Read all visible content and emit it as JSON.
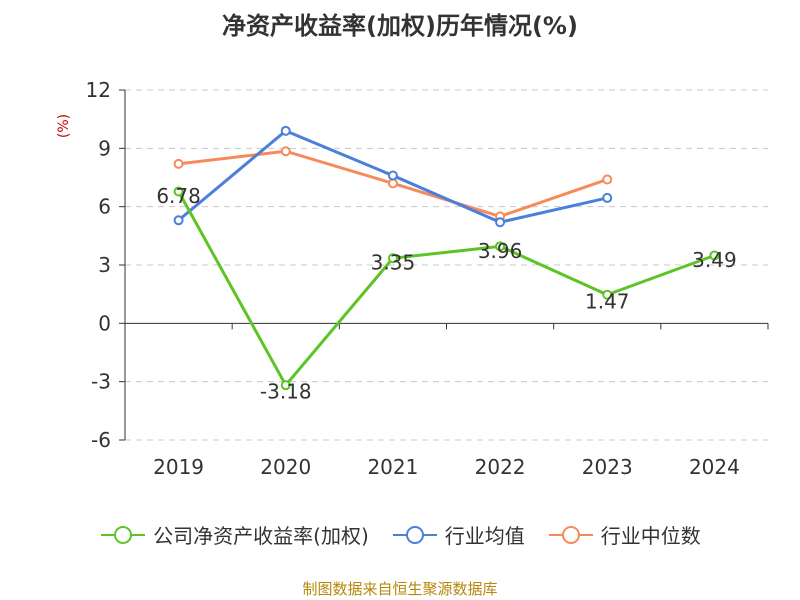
{
  "title": "净资产收益率(加权)历年情况(%)",
  "source_note": "制图数据来自恒生聚源数据库",
  "chart_data": {
    "type": "line",
    "title": "净资产收益率(加权)历年情况(%)",
    "ylabel": "(%)",
    "xlabel": "",
    "categories": [
      "2019",
      "2020",
      "2021",
      "2022",
      "2023",
      "2024"
    ],
    "ylim": [
      -6,
      12
    ],
    "yticks": [
      12,
      9,
      6,
      3,
      0,
      -3,
      -6
    ],
    "grid": true,
    "legend_position": "bottom",
    "series": [
      {
        "name": "公司净资产收益率(加权)",
        "color": "#5cc424",
        "values": [
          6.78,
          -3.18,
          3.35,
          3.96,
          1.47,
          3.49
        ],
        "labels": [
          "6.78",
          "-3.18",
          "3.35",
          "3.96",
          "1.47",
          "3.49"
        ]
      },
      {
        "name": "行业均值",
        "color": "#4b7fdc",
        "values": [
          5.3,
          9.9,
          7.6,
          5.2,
          6.45,
          null
        ]
      },
      {
        "name": "行业中位数",
        "color": "#f78a5a",
        "values": [
          8.2,
          8.85,
          7.2,
          5.5,
          7.4,
          null
        ]
      }
    ]
  }
}
